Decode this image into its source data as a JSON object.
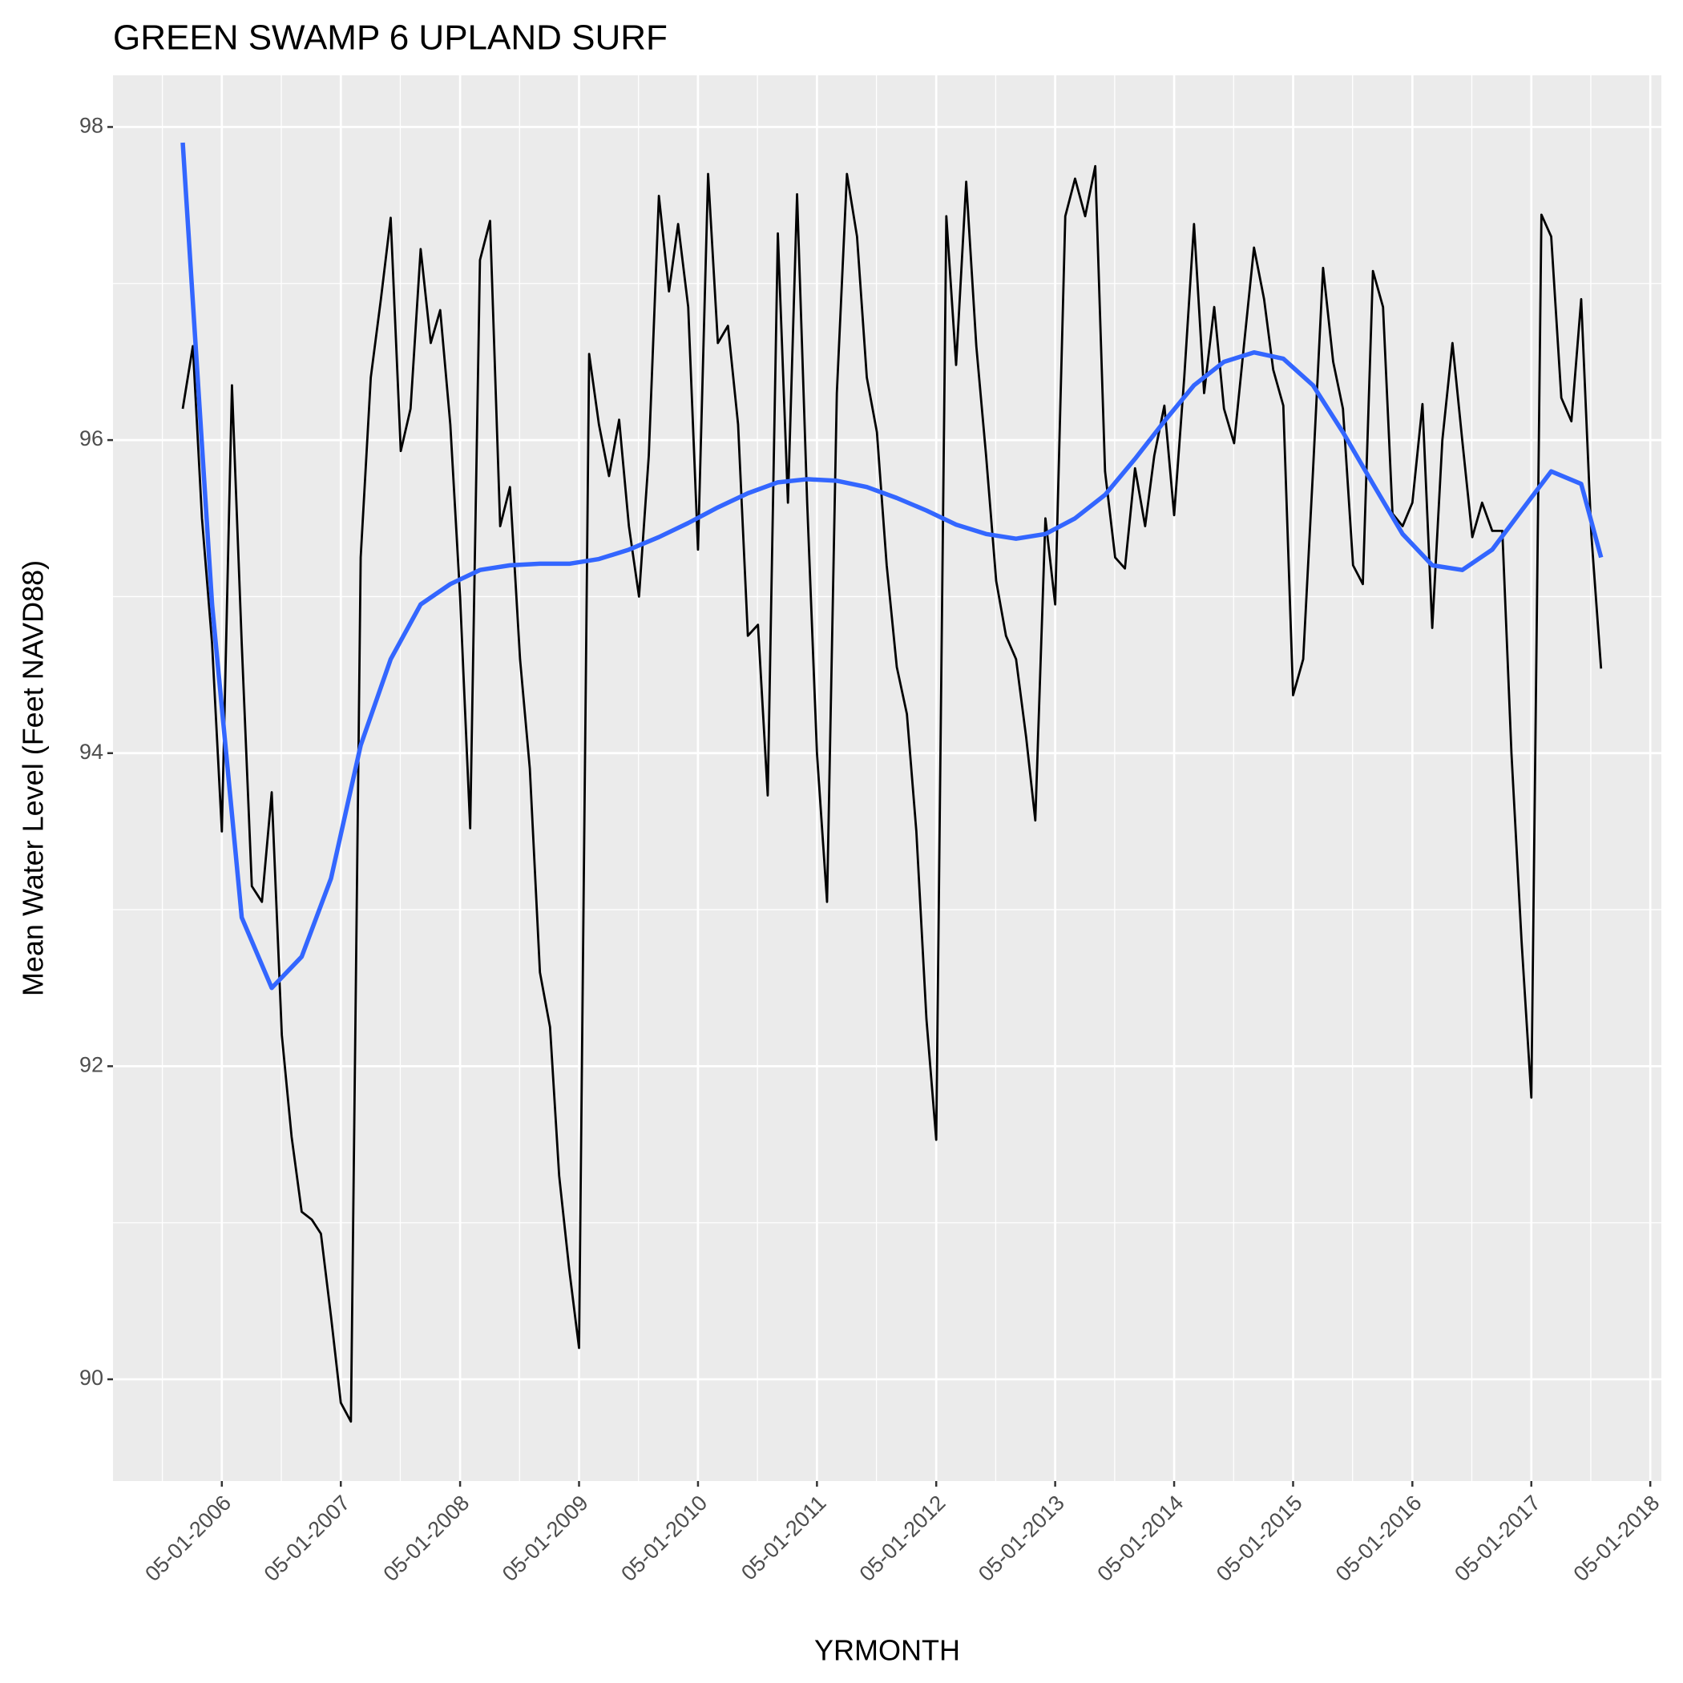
{
  "chart_data": {
    "type": "line",
    "title": "GREEN SWAMP 6 UPLAND SURF",
    "x_label": "YRMONTH",
    "y_label": "Mean Water Level (Feet NAVD88)",
    "xlim": [
      "2005-06-01",
      "2018-06-04"
    ],
    "ylim": [
      89.35,
      98.33
    ],
    "xticks": [
      {
        "value": "2006-05-01",
        "label": "05-01-2006"
      },
      {
        "value": "2007-05-01",
        "label": "05-01-2007"
      },
      {
        "value": "2008-05-01",
        "label": "05-01-2008"
      },
      {
        "value": "2009-05-01",
        "label": "05-01-2009"
      },
      {
        "value": "2010-05-01",
        "label": "05-01-2010"
      },
      {
        "value": "2011-05-01",
        "label": "05-01-2011"
      },
      {
        "value": "2012-05-01",
        "label": "05-01-2012"
      },
      {
        "value": "2013-05-01",
        "label": "05-01-2013"
      },
      {
        "value": "2014-05-01",
        "label": "05-01-2014"
      },
      {
        "value": "2015-05-01",
        "label": "05-01-2015"
      },
      {
        "value": "2016-05-01",
        "label": "05-01-2016"
      },
      {
        "value": "2017-05-01",
        "label": "05-01-2017"
      },
      {
        "value": "2018-05-01",
        "label": "05-01-2018"
      }
    ],
    "yticks": [
      90,
      92,
      94,
      96,
      98
    ],
    "grid": true,
    "x": [
      "2006-01-01",
      "2006-02-01",
      "2006-03-01",
      "2006-04-01",
      "2006-05-01",
      "2006-06-01",
      "2006-07-01",
      "2006-08-01",
      "2006-09-01",
      "2006-10-01",
      "2006-11-01",
      "2006-12-01",
      "2007-01-01",
      "2007-02-01",
      "2007-03-01",
      "2007-04-01",
      "2007-05-01",
      "2007-06-01",
      "2007-07-01",
      "2007-08-01",
      "2007-09-01",
      "2007-10-01",
      "2007-11-01",
      "2007-12-01",
      "2008-01-01",
      "2008-02-01",
      "2008-03-01",
      "2008-04-01",
      "2008-05-01",
      "2008-06-01",
      "2008-07-01",
      "2008-08-01",
      "2008-09-01",
      "2008-10-01",
      "2008-11-01",
      "2008-12-01",
      "2009-01-01",
      "2009-02-01",
      "2009-03-01",
      "2009-04-01",
      "2009-05-01",
      "2009-06-01",
      "2009-07-01",
      "2009-08-01",
      "2009-09-01",
      "2009-10-01",
      "2009-11-01",
      "2009-12-01",
      "2010-01-01",
      "2010-02-01",
      "2010-03-01",
      "2010-04-01",
      "2010-05-01",
      "2010-06-01",
      "2010-07-01",
      "2010-08-01",
      "2010-09-01",
      "2010-10-01",
      "2010-11-01",
      "2010-12-01",
      "2011-01-01",
      "2011-02-01",
      "2011-03-01",
      "2011-04-01",
      "2011-05-01",
      "2011-06-01",
      "2011-07-01",
      "2011-08-01",
      "2011-09-01",
      "2011-10-01",
      "2011-11-01",
      "2011-12-01",
      "2012-01-01",
      "2012-02-01",
      "2012-03-01",
      "2012-04-01",
      "2012-05-01",
      "2012-06-01",
      "2012-07-01",
      "2012-08-01",
      "2012-09-01",
      "2012-10-01",
      "2012-11-01",
      "2012-12-01",
      "2013-01-01",
      "2013-02-01",
      "2013-03-01",
      "2013-04-01",
      "2013-05-01",
      "2013-06-01",
      "2013-07-01",
      "2013-08-01",
      "2013-09-01",
      "2013-10-01",
      "2013-11-01",
      "2013-12-01",
      "2014-01-01",
      "2014-02-01",
      "2014-03-01",
      "2014-04-01",
      "2014-05-01",
      "2014-06-01",
      "2014-07-01",
      "2014-08-01",
      "2014-09-01",
      "2014-10-01",
      "2014-11-01",
      "2014-12-01",
      "2015-01-01",
      "2015-02-01",
      "2015-03-01",
      "2015-04-01",
      "2015-05-01",
      "2015-06-01",
      "2015-07-01",
      "2015-08-01",
      "2015-09-01",
      "2015-10-01",
      "2015-11-01",
      "2015-12-01",
      "2016-01-01",
      "2016-02-01",
      "2016-03-01",
      "2016-04-01",
      "2016-05-01",
      "2016-06-01",
      "2016-07-01",
      "2016-08-01",
      "2016-09-01",
      "2016-10-01",
      "2016-11-01",
      "2016-12-01",
      "2017-01-01",
      "2017-02-01",
      "2017-03-01",
      "2017-04-01",
      "2017-05-01",
      "2017-06-01",
      "2017-07-01",
      "2017-08-01",
      "2017-09-01",
      "2017-10-01",
      "2017-11-01",
      "2017-12-01"
    ],
    "series": [
      {
        "color": "#000000",
        "values": [
          96.2,
          96.6,
          95.5,
          94.7,
          93.5,
          96.35,
          94.7,
          93.15,
          93.05,
          93.75,
          92.2,
          91.55,
          91.07,
          91.02,
          90.93,
          90.4,
          89.85,
          89.73,
          95.25,
          96.4,
          96.9,
          97.42,
          95.93,
          96.2,
          97.22,
          96.62,
          96.83,
          96.1,
          95.0,
          93.52,
          97.15,
          97.4,
          95.45,
          95.7,
          94.6,
          93.9,
          92.6,
          92.25,
          91.3,
          90.7,
          90.2,
          96.55,
          96.1,
          95.77,
          96.13,
          95.45,
          95.0,
          95.9,
          97.56,
          96.95,
          97.38,
          96.85,
          95.3,
          97.7,
          96.62,
          96.73,
          96.1,
          94.75,
          94.82,
          93.73,
          97.32,
          95.6,
          97.57,
          95.6,
          94.0,
          93.05,
          96.3,
          97.7,
          97.3,
          96.4,
          96.05,
          95.2,
          94.55,
          94.25,
          93.5,
          92.3,
          91.53,
          97.43,
          96.48,
          97.65,
          96.6,
          95.9,
          95.1,
          94.75,
          94.6,
          94.1,
          93.57,
          95.5,
          94.95,
          97.43,
          97.67,
          97.43,
          97.75,
          95.8,
          95.25,
          95.18,
          95.82,
          95.45,
          95.9,
          96.22,
          95.52,
          96.4,
          97.38,
          96.3,
          96.85,
          96.2,
          95.98,
          96.6,
          97.23,
          96.9,
          96.45,
          96.22,
          94.37,
          94.6,
          95.8,
          97.1,
          96.5,
          96.2,
          95.2,
          95.08,
          97.08,
          96.85,
          95.53,
          95.45,
          95.6,
          96.23,
          94.8,
          96.0,
          96.62,
          96.0,
          95.38,
          95.6,
          95.42,
          95.42,
          94.0,
          92.8,
          91.8,
          97.44,
          97.3,
          96.27,
          96.12,
          96.9,
          95.4,
          94.54
        ]
      },
      {
        "color": "#3366FF",
        "x": [
          "2006-01-01",
          "2006-04-01",
          "2006-07-01",
          "2006-10-01",
          "2007-01-01",
          "2007-04-01",
          "2007-07-01",
          "2007-10-01",
          "2008-01-01",
          "2008-04-01",
          "2008-07-01",
          "2008-10-01",
          "2009-01-01",
          "2009-04-01",
          "2009-07-01",
          "2009-10-01",
          "2010-01-01",
          "2010-04-01",
          "2010-07-01",
          "2010-10-01",
          "2011-01-01",
          "2011-04-01",
          "2011-07-01",
          "2011-10-01",
          "2012-01-01",
          "2012-04-01",
          "2012-07-01",
          "2012-10-01",
          "2013-01-01",
          "2013-04-01",
          "2013-07-01",
          "2013-10-01",
          "2014-01-01",
          "2014-04-01",
          "2014-07-01",
          "2014-10-01",
          "2015-01-01",
          "2015-04-01",
          "2015-07-01",
          "2015-10-01",
          "2016-01-01",
          "2016-04-01",
          "2016-07-01",
          "2016-10-01",
          "2017-01-01",
          "2017-04-01",
          "2017-07-01",
          "2017-10-01",
          "2017-12-01"
        ],
        "values": [
          97.9,
          94.95,
          92.95,
          92.5,
          92.7,
          93.2,
          94.05,
          94.6,
          94.95,
          95.08,
          95.17,
          95.2,
          95.21,
          95.21,
          95.24,
          95.3,
          95.38,
          95.47,
          95.57,
          95.66,
          95.73,
          95.75,
          95.74,
          95.7,
          95.63,
          95.55,
          95.46,
          95.4,
          95.37,
          95.4,
          95.5,
          95.65,
          95.88,
          96.12,
          96.35,
          96.5,
          96.56,
          96.52,
          96.35,
          96.05,
          95.72,
          95.4,
          95.2,
          95.17,
          95.3,
          95.55,
          95.8,
          95.72,
          95.25
        ]
      }
    ]
  }
}
